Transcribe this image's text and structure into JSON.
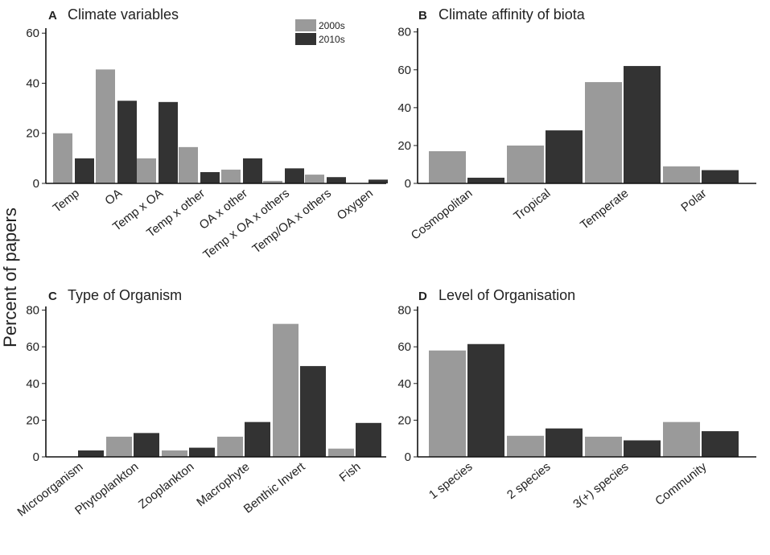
{
  "figure": {
    "ylabel": "Percent of papers",
    "legend": {
      "position": "top-right of panel A",
      "entries": [
        "2000s",
        "2010s"
      ]
    },
    "colors": {
      "2000s": "#9a9a9a",
      "2010s": "#333333"
    }
  },
  "chart_data": [
    {
      "type": "bar",
      "panel": "A",
      "title": "Climate variables",
      "ylim": [
        0,
        62
      ],
      "yticks": [
        0,
        20,
        40,
        60
      ],
      "categories": [
        "Temp",
        "OA",
        "Temp x OA",
        "Temp x other",
        "OA x other",
        "Temp x OA x others",
        "Temp/OA x others",
        "Oxygen"
      ],
      "series": [
        {
          "name": "2000s",
          "values": [
            20,
            45.5,
            10,
            14.5,
            5.5,
            1,
            3.5,
            0
          ]
        },
        {
          "name": "2010s",
          "values": [
            10,
            33,
            32.5,
            4.5,
            10,
            6,
            2.5,
            1.5
          ]
        }
      ]
    },
    {
      "type": "bar",
      "panel": "B",
      "title": "Climate affinity of biota",
      "ylim": [
        0,
        82
      ],
      "yticks": [
        0,
        20,
        40,
        60,
        80
      ],
      "categories": [
        "Cosmopolitan",
        "Tropical",
        "Temperate",
        "Polar"
      ],
      "series": [
        {
          "name": "2000s",
          "values": [
            17,
            20,
            53.5,
            9
          ]
        },
        {
          "name": "2010s",
          "values": [
            3,
            28,
            62,
            7
          ]
        }
      ]
    },
    {
      "type": "bar",
      "panel": "C",
      "title": "Type of Organism",
      "ylim": [
        0,
        82
      ],
      "yticks": [
        0,
        20,
        40,
        60,
        80
      ],
      "categories": [
        "Microorganism",
        "Phytoplankton",
        "Zooplankton",
        "Macrophyte",
        "Benthic Invert",
        "Fish"
      ],
      "series": [
        {
          "name": "2000s",
          "values": [
            0,
            11,
            3.5,
            11,
            72.5,
            4.5
          ]
        },
        {
          "name": "2010s",
          "values": [
            3.5,
            13,
            5,
            19,
            49.5,
            18.5
          ]
        }
      ]
    },
    {
      "type": "bar",
      "panel": "D",
      "title": "Level of Organisation",
      "ylim": [
        0,
        82
      ],
      "yticks": [
        0,
        20,
        40,
        60,
        80
      ],
      "categories": [
        "1 species",
        "2 species",
        "3(+) species",
        "Community"
      ],
      "series": [
        {
          "name": "2000s",
          "values": [
            58,
            11.5,
            11,
            19
          ]
        },
        {
          "name": "2010s",
          "values": [
            61.5,
            15.5,
            9,
            14
          ]
        }
      ]
    }
  ]
}
